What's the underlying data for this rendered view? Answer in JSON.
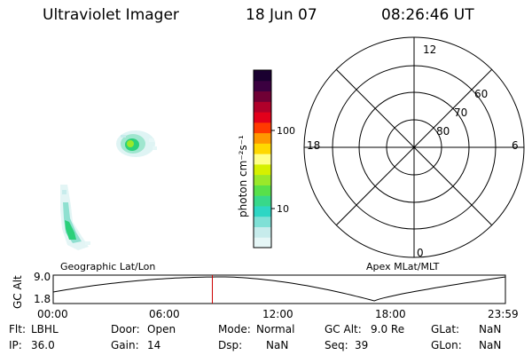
{
  "header": {
    "instrument": "Ultraviolet Imager",
    "date": "18 Jun 07",
    "time": "08:26:46 UT"
  },
  "colorbar": {
    "label": "photon cm⁻²s⁻¹",
    "ticks": [
      "100",
      "10"
    ],
    "scale": "log",
    "colors": [
      "#e6f7f7",
      "#c7ecec",
      "#7fe0d6",
      "#2ed6c4",
      "#38d88a",
      "#58e04a",
      "#9ae82a",
      "#d6f000",
      "#ffff88",
      "#ffd800",
      "#ff9800",
      "#ff3a00",
      "#e3001b",
      "#b0002a",
      "#700035",
      "#3b0040",
      "#1a0030"
    ]
  },
  "polar": {
    "mlt_labels": {
      "top": "12",
      "right": "6",
      "bottom": "0",
      "left": "18"
    },
    "lat_labels": [
      "80",
      "70",
      "60"
    ]
  },
  "orbit": {
    "ylabel": "GC Alt",
    "y_ticks": [
      "9.0",
      "1.8"
    ],
    "left_caption": "Geographic Lat/Lon",
    "right_caption": "Apex MLat/MLT",
    "x_ticks": [
      "00:00",
      "06:00",
      "12:00",
      "18:00",
      "23:59"
    ],
    "current_time_marker": "08:26:46",
    "marker_color": "#cc0000"
  },
  "info": {
    "row1": {
      "flt_label": "Flt:",
      "flt_value": "LBHL",
      "door_label": "Door:",
      "door_value": "Open",
      "mode_label": "Mode:",
      "mode_value": "Normal",
      "gcalt_label": "GC Alt:",
      "gcalt_value": "9.0 Re",
      "glat_label": "GLat:",
      "glat_value": "NaN"
    },
    "row2": {
      "ip_label": "IP:",
      "ip_value": "36.0",
      "gain_label": "Gain:",
      "gain_value": "14",
      "dsp_label": "Dsp:",
      "dsp_value": "NaN",
      "seq_label": "Seq:",
      "seq_value": "39",
      "glon_label": "GLon:",
      "glon_value": "NaN"
    }
  }
}
